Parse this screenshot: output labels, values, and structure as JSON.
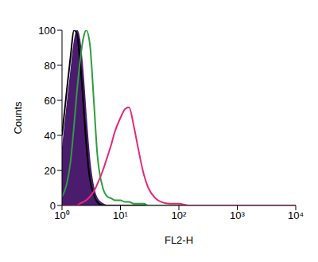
{
  "chart_data": {
    "type": "line",
    "x_label": "FL2-H",
    "y_label": "Counts",
    "log": "x",
    "xlim": [
      1,
      10000
    ],
    "xticks": [
      {
        "value": 1,
        "label": "10⁰"
      },
      {
        "value": 10,
        "label": "10¹"
      },
      {
        "value": 100,
        "label": "10²"
      },
      {
        "value": 1000,
        "label": "10³"
      },
      {
        "value": 10000,
        "label": "10⁴"
      }
    ],
    "ylim": [
      0,
      100
    ],
    "yticks": [
      0,
      20,
      40,
      60,
      80,
      100
    ],
    "grid": false,
    "x": [
      1,
      1.2,
      1.4,
      1.6,
      1.8,
      2,
      2.3,
      2.6,
      3,
      3.5,
      4,
      5,
      6,
      7,
      8,
      10,
      12,
      14,
      17,
      20,
      25,
      30,
      40,
      50,
      70,
      100,
      150,
      300,
      1000,
      10000
    ],
    "series": [
      {
        "type": "area",
        "color": "#4b1b6e",
        "values": [
          30,
          55,
          75,
          92,
          100,
          95,
          75,
          50,
          25,
          10,
          4,
          1,
          0,
          0,
          0,
          0,
          0,
          0,
          0,
          0,
          0,
          0,
          0,
          0,
          0,
          0,
          0,
          0,
          0,
          0
        ]
      },
      {
        "type": "line",
        "color": "#000000",
        "values": [
          40,
          65,
          85,
          100,
          98,
          85,
          60,
          35,
          15,
          6,
          2,
          0,
          0,
          0,
          0,
          0,
          0,
          0,
          0,
          0,
          0,
          0,
          0,
          0,
          0,
          0,
          0,
          0,
          0,
          0
        ]
      },
      {
        "type": "line",
        "color": "#2e9e3e",
        "values": [
          5,
          12,
          25,
          45,
          65,
          80,
          95,
          100,
          92,
          60,
          30,
          10,
          5,
          4,
          3,
          3,
          2,
          2,
          1,
          1,
          1,
          0,
          0,
          0,
          0,
          0,
          0,
          0,
          0,
          0
        ]
      },
      {
        "type": "line",
        "color": "#e6287a",
        "values": [
          0,
          0,
          0,
          0,
          0,
          1,
          2,
          3,
          5,
          8,
          12,
          20,
          28,
          35,
          42,
          50,
          55,
          56,
          45,
          33,
          18,
          10,
          4,
          2,
          1,
          1,
          0,
          0,
          0,
          0
        ]
      }
    ]
  }
}
